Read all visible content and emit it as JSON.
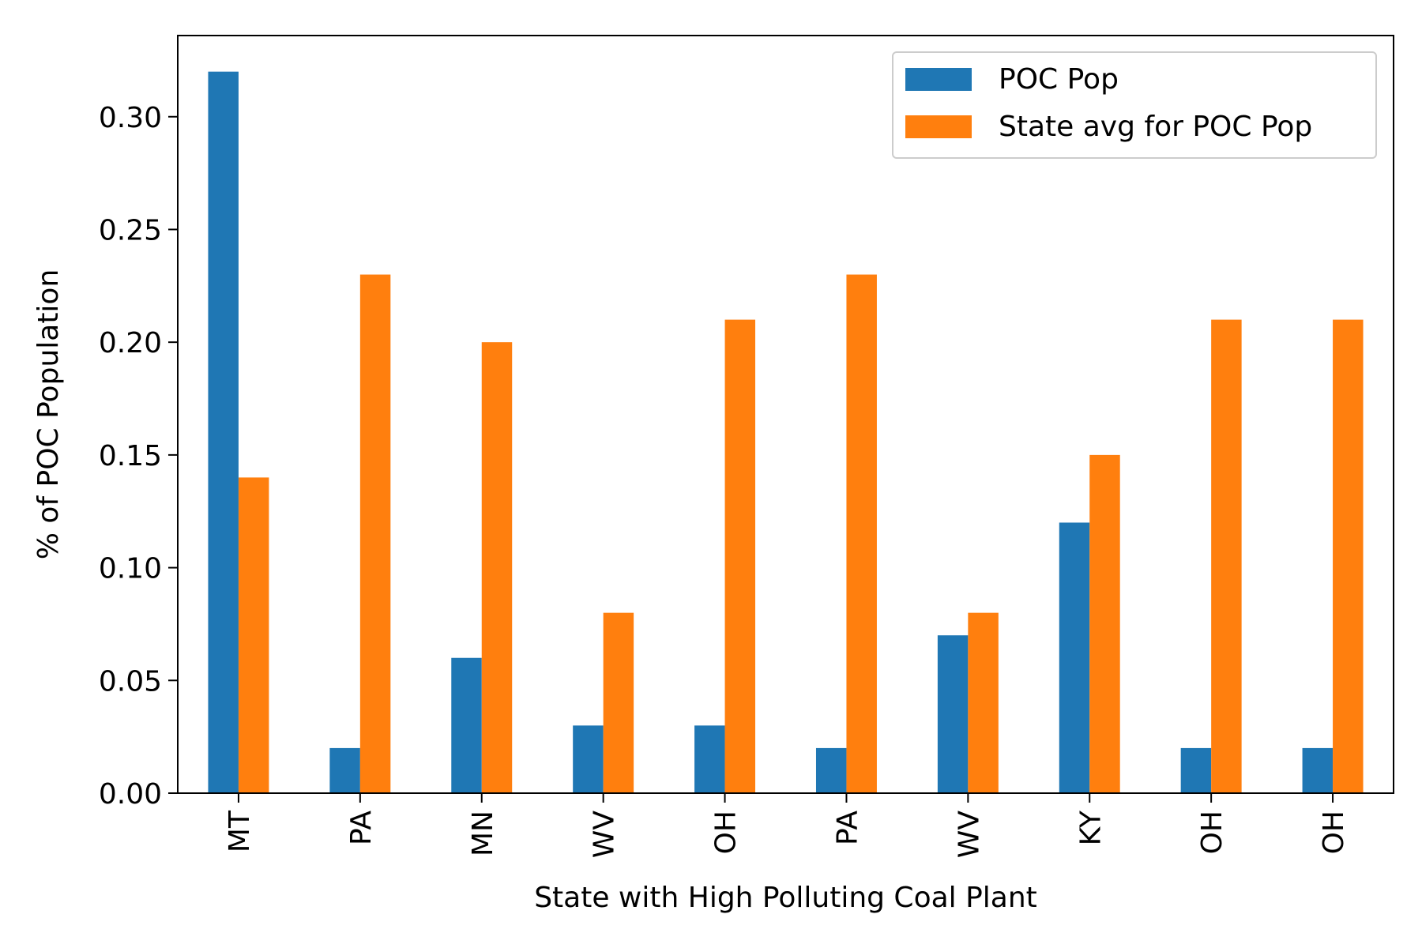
{
  "chart_data": {
    "type": "bar",
    "categories": [
      "MT",
      "PA",
      "MN",
      "WV",
      "OH",
      "PA",
      "WV",
      "KY",
      "OH",
      "OH"
    ],
    "series": [
      {
        "name": "POC Pop",
        "color": "#1f77b4",
        "values": [
          0.32,
          0.02,
          0.06,
          0.03,
          0.03,
          0.02,
          0.07,
          0.12,
          0.02,
          0.02
        ]
      },
      {
        "name": "State avg for POC Pop",
        "color": "#ff7f0e",
        "values": [
          0.14,
          0.23,
          0.2,
          0.08,
          0.21,
          0.23,
          0.08,
          0.15,
          0.21,
          0.21
        ]
      }
    ],
    "title": "",
    "xlabel": "State with High Polluting Coal Plant",
    "ylabel": "% of POC Population",
    "ylim": [
      0,
      0.336
    ],
    "yticks": [
      "0.00",
      "0.05",
      "0.10",
      "0.15",
      "0.20",
      "0.25",
      "0.30"
    ],
    "grid": false,
    "legend_position": "top-right"
  }
}
